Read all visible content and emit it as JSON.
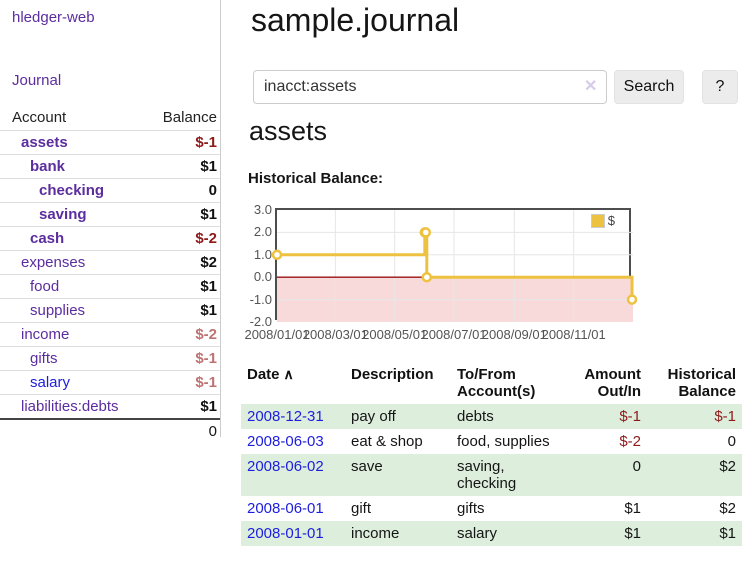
{
  "brand": "hledger-web",
  "nav": {
    "journal": "Journal"
  },
  "sidebar": {
    "headers": {
      "account": "Account",
      "balance": "Balance"
    },
    "rows": [
      {
        "name": "assets",
        "balance": "$-1",
        "depth": 1,
        "bold": true,
        "neg": "strong",
        "link": "purple"
      },
      {
        "name": "bank",
        "balance": "$1",
        "depth": 2,
        "bold": true,
        "neg": "none",
        "link": "purple"
      },
      {
        "name": "checking",
        "balance": "0",
        "depth": 3,
        "bold": true,
        "neg": "none",
        "link": "purple"
      },
      {
        "name": "saving",
        "balance": "$1",
        "depth": 3,
        "bold": true,
        "neg": "none",
        "link": "purple"
      },
      {
        "name": "cash",
        "balance": "$-2",
        "depth": 2,
        "bold": true,
        "neg": "strong",
        "link": "purple"
      },
      {
        "name": "expenses",
        "balance": "$2",
        "depth": 1,
        "bold": false,
        "neg": "none",
        "link": "purple"
      },
      {
        "name": "food",
        "balance": "$1",
        "depth": 2,
        "bold": false,
        "neg": "none",
        "link": "purple"
      },
      {
        "name": "supplies",
        "balance": "$1",
        "depth": 2,
        "bold": false,
        "neg": "none",
        "link": "purple"
      },
      {
        "name": "income",
        "balance": "$-2",
        "depth": 1,
        "bold": false,
        "neg": "soft",
        "link": "purple"
      },
      {
        "name": "gifts",
        "balance": "$-1",
        "depth": 2,
        "bold": false,
        "neg": "soft",
        "link": "purple"
      },
      {
        "name": "salary",
        "balance": "$-1",
        "depth": 2,
        "bold": false,
        "neg": "soft",
        "link": "blue"
      },
      {
        "name": "liabilities:debts",
        "balance": "$1",
        "depth": 1,
        "bold": false,
        "neg": "none",
        "link": "purple"
      }
    ],
    "total": "0"
  },
  "header": {
    "title": "sample.journal"
  },
  "search": {
    "value": "inacct:assets",
    "clear_icon": "✕",
    "button": "Search",
    "help": "?"
  },
  "account_page": {
    "heading": "assets",
    "chart_title": "Historical Balance:"
  },
  "chart_data": {
    "type": "line",
    "step": true,
    "series": [
      {
        "name": "$",
        "color": "#edc240",
        "points": [
          [
            "2008-01-01",
            1
          ],
          [
            "2008-06-01",
            2
          ],
          [
            "2008-06-02",
            2
          ],
          [
            "2008-06-03",
            0
          ],
          [
            "2008-12-31",
            -1
          ]
        ]
      }
    ],
    "x_range": [
      "2008-01-01",
      "2009-01-01"
    ],
    "x_ticks": [
      "2008/01/01",
      "2008/03/01",
      "2008/05/01",
      "2008/07/01",
      "2008/09/01",
      "2008/11/01"
    ],
    "y_ticks": [
      "3.0",
      "2.0",
      "1.0",
      "0.0",
      "-1.0",
      "-2.0"
    ],
    "ylim": [
      -2,
      3
    ],
    "grid": true,
    "legend": {
      "label": "$",
      "position": "top-right"
    }
  },
  "transactions": {
    "sort_icon": "∧",
    "headers": [
      "Date",
      "Description",
      "To/From Account(s)",
      "Amount Out/In",
      "Historical Balance"
    ],
    "rows": [
      {
        "date": "2008-12-31",
        "description": "pay off",
        "accounts": "debts",
        "amount": "$-1",
        "balance": "$-1",
        "amount_neg": true,
        "balance_neg": true,
        "shaded": true
      },
      {
        "date": "2008-06-03",
        "description": "eat & shop",
        "accounts": "food, supplies",
        "amount": "$-2",
        "balance": "0",
        "amount_neg": true,
        "balance_neg": false,
        "shaded": false
      },
      {
        "date": "2008-06-02",
        "description": "save",
        "accounts": "saving, checking",
        "amount": "0",
        "balance": "$2",
        "amount_neg": false,
        "balance_neg": false,
        "shaded": true
      },
      {
        "date": "2008-06-01",
        "description": "gift",
        "accounts": "gifts",
        "amount": "$1",
        "balance": "$2",
        "amount_neg": false,
        "balance_neg": false,
        "shaded": false
      },
      {
        "date": "2008-01-01",
        "description": "income",
        "accounts": "salary",
        "amount": "$1",
        "balance": "$1",
        "amount_neg": false,
        "balance_neg": false,
        "shaded": true
      }
    ]
  },
  "colors": {
    "purple": "#5b2d9e",
    "link_blue": "#1d1de0",
    "negative_strong": "#8e1a1a",
    "negative_soft": "#bf7272",
    "row_green": "#ddeedd",
    "gold": "#edc240",
    "grid": "#e6e6e6",
    "zero_line": "#991111",
    "neg_region": "#f9dada",
    "lavender": "#d7cbe9",
    "button_bg": "#ececec",
    "border_gray": "#cccccc"
  }
}
